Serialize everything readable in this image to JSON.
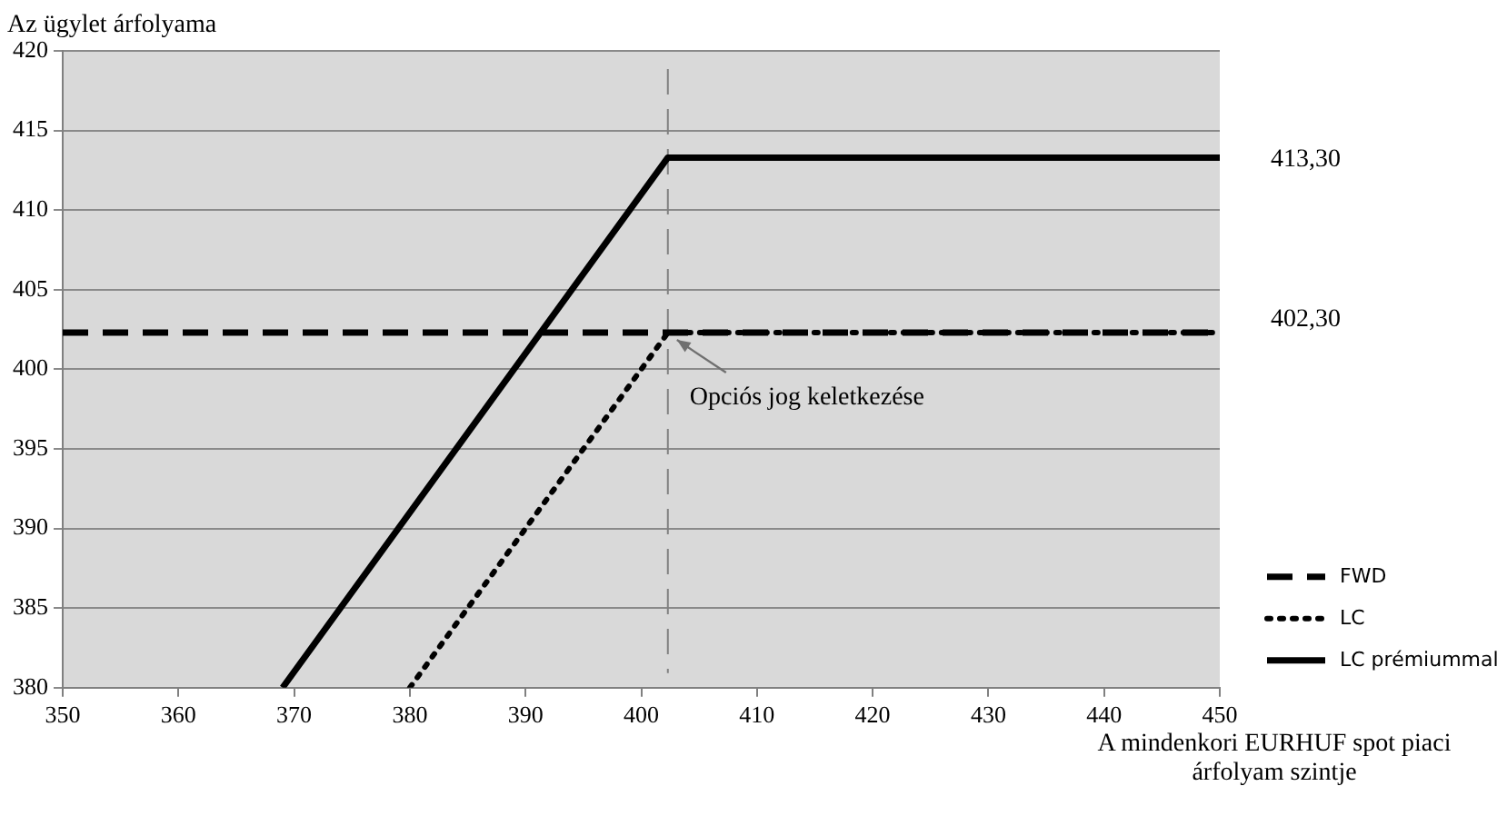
{
  "chart_data": {
    "type": "line",
    "xlabel": "A mindenkori EURHUF spot piaci árfolyam szintje",
    "ylabel": "Az ügylet árfolyama",
    "xlim": [
      350,
      450
    ],
    "xticks": [
      350,
      360,
      370,
      380,
      390,
      400,
      410,
      420,
      430,
      440,
      450
    ],
    "ylim": [
      380,
      420
    ],
    "yticks": [
      380,
      385,
      390,
      395,
      400,
      405,
      410,
      415,
      420
    ],
    "grid": "y",
    "legend": "right",
    "marker": "none",
    "series": [
      {
        "name": "FWD",
        "color": "#000000",
        "line_style": "dashed",
        "x": [
          350,
          450
        ],
        "values": [
          402.3,
          402.3
        ]
      },
      {
        "name": "LC",
        "color": "#000000",
        "line_style": "dotted",
        "x": [
          380,
          402.3,
          450
        ],
        "values": [
          380,
          402.3,
          402.3
        ]
      },
      {
        "name": "LC prémiummal",
        "color": "#000000",
        "line_style": "solid",
        "x": [
          369,
          402.3,
          450
        ],
        "values": [
          380,
          413.3,
          413.3
        ]
      }
    ],
    "ref_lines": [
      {
        "axis": "x",
        "value": 402.3,
        "color": "#808080",
        "line_style": "dashed"
      }
    ],
    "annotations": [
      "413,30",
      "402,30",
      {
        "text": "Opciós jog keletkezése",
        "x": 402.3,
        "y": 402.3
      }
    ]
  }
}
